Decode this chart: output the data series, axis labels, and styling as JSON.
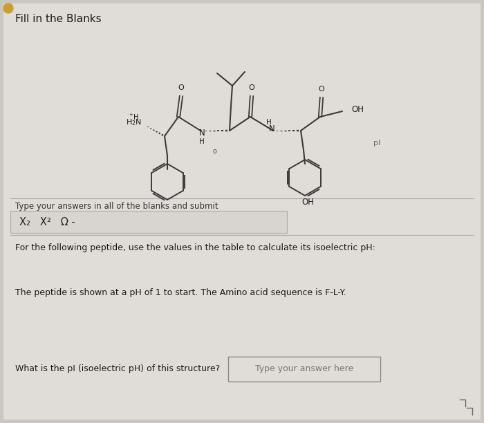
{
  "background_color": "#cac7c2",
  "panel_color": "#e0ddd8",
  "title": "Fill in the Blanks",
  "title_fontsize": 11,
  "toolbar_text": "Type your answers in all of the blanks and submit",
  "toolbar_fontsize": 8.5,
  "toolbar_symbols": "X₂   X²   Ω -",
  "body_text1": "For the following peptide, use the values in the table to calculate its isoelectric pH:",
  "body_text2": "The peptide is shown at a pH of 1 to start. The Amino acid sequence is F-L-Y.",
  "question_text": "What is the pI (isoelectric pH) of this structure?",
  "answer_placeholder": "Type your answer here",
  "body_fontsize": 9,
  "question_fontsize": 9,
  "pi_label": "pI",
  "bond_color": "#3a3a3a",
  "text_color": "#1a1a1a",
  "light_text": "#555555"
}
